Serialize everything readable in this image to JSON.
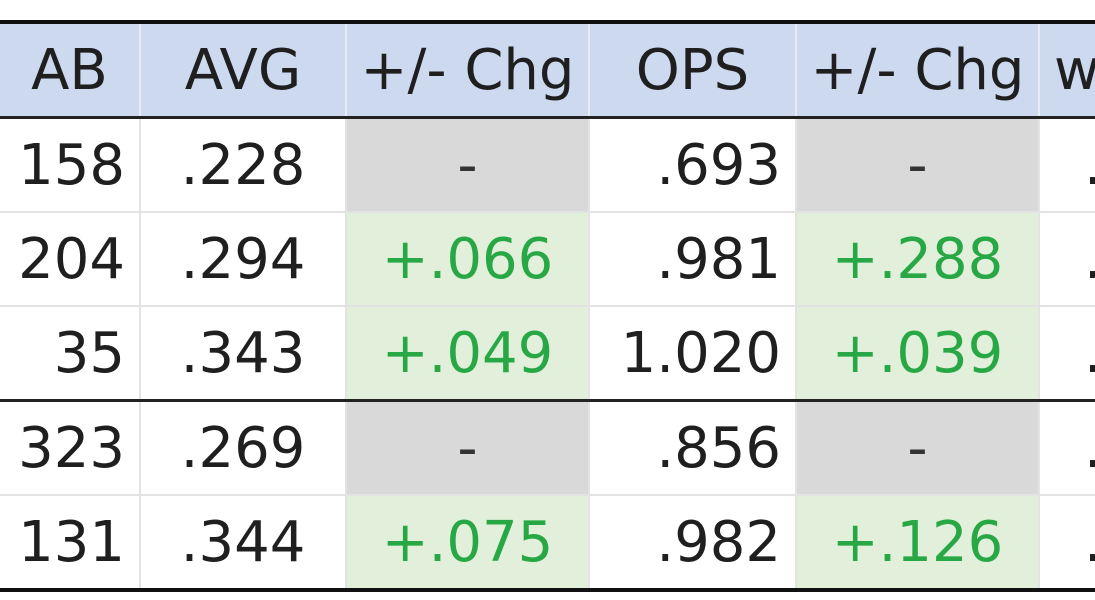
{
  "headers": [
    "AB",
    "AVG",
    "+/- Chg",
    "OPS",
    "+/- Chg",
    "w"
  ],
  "rows": [
    {
      "ab": "158",
      "avg": ".228",
      "avg_chg": "-",
      "ops": ".693",
      "ops_chg": "-",
      "w": "."
    },
    {
      "ab": "204",
      "avg": ".294",
      "avg_chg": "+.066",
      "ops": ".981",
      "ops_chg": "+.288",
      "w": "."
    },
    {
      "ab": "35",
      "avg": ".343",
      "avg_chg": "+.049",
      "ops": "1.020",
      "ops_chg": "+.039",
      "w": "."
    },
    {
      "ab": "323",
      "avg": ".269",
      "avg_chg": "-",
      "ops": ".856",
      "ops_chg": "-",
      "w": "."
    },
    {
      "ab": "131",
      "avg": ".344",
      "avg_chg": "+.075",
      "ops": ".982",
      "ops_chg": "+.126",
      "w": "."
    }
  ],
  "colors": {
    "header_bg": "#ccd9ee",
    "baseline_cell_bg": "#d9d9d9",
    "positive_cell_bg": "#e2efda",
    "positive_text": "#27a845"
  }
}
